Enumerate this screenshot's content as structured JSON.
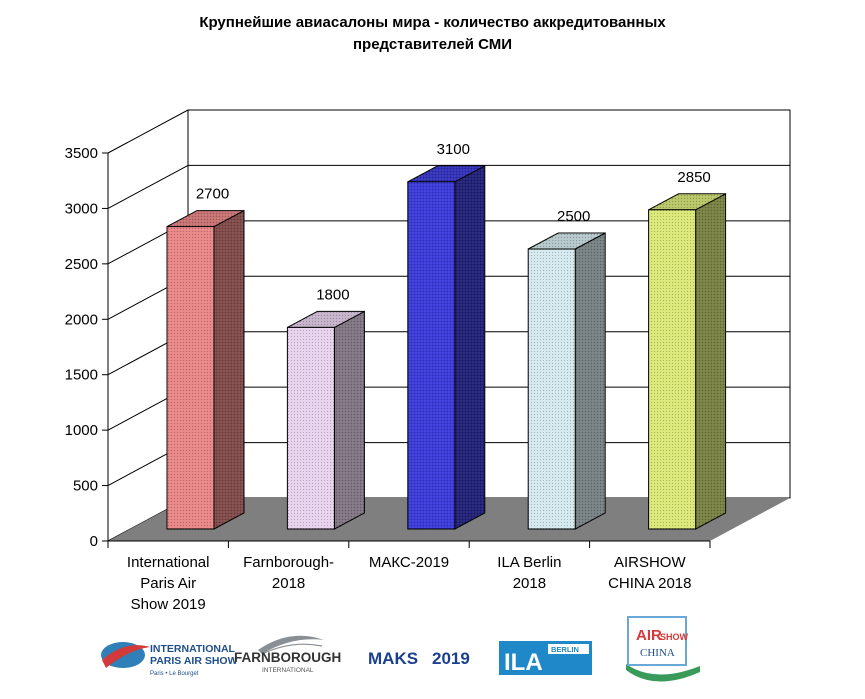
{
  "chart_data": {
    "type": "bar",
    "title_lines": [
      "Крупнейшие авиасалоны мира - количество аккредитованных",
      "представителей СМИ"
    ],
    "categories": [
      [
        "International",
        "Paris Air",
        "Show 2019"
      ],
      [
        "Farnborough-",
        "2018"
      ],
      [
        "МАКС-2019"
      ],
      [
        "ILA Berlin",
        "2018"
      ],
      [
        "AIRSHOW",
        "CHINA 2018"
      ]
    ],
    "values": [
      2700,
      1800,
      3100,
      2500,
      2850
    ],
    "data_labels": [
      "2700",
      "1800",
      "3100",
      "2500",
      "2850"
    ],
    "yticks": [
      "0",
      "500",
      "1000",
      "1500",
      "2000",
      "2500",
      "3000",
      "3500"
    ],
    "ylim": [
      0,
      3500
    ],
    "grid": true,
    "bar_colors": [
      "#e98585",
      "#e8d2ee",
      "#3a3ad9",
      "#d4e9ee",
      "#d9e877"
    ],
    "floor_color": "#7f7f7f"
  },
  "logos": {
    "paris": {
      "line1": "INTERNATIONAL",
      "line2": "PARIS AIR SHOW",
      "line3": "Paris • Le Bourget"
    },
    "farnborough": {
      "line1": "FARNBOROUGH",
      "line2": "INTERNATIONAL"
    },
    "maks": {
      "name": "MAKS",
      "year": "2019"
    },
    "ila": {
      "name": "ILA",
      "tag": "BERLIN"
    },
    "china": {
      "line1": "AIR",
      "line2": "SHOW",
      "line3": "CHINA"
    }
  }
}
